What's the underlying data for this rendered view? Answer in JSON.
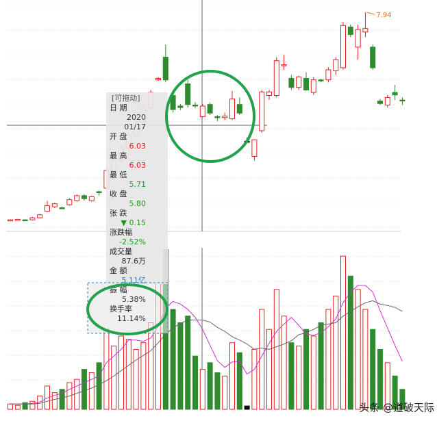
{
  "chart_data": {
    "type": "candlestick",
    "max_marker": 7.94,
    "ylim": [
      3.7,
      8.05
    ],
    "volume_ylim": [
      0,
      260
    ],
    "up_color": "#e02020",
    "down_color": "#2e8b2e",
    "flat_color": "#000000",
    "open": [
      3.81,
      3.82,
      3.82,
      3.82,
      3.86,
      3.99,
      4.08,
      4.06,
      4.12,
      4.2,
      4.3,
      4.2,
      4.38,
      4.45,
      4.8,
      5.0,
      5.25,
      5.5,
      5.75,
      6.05,
      6.6,
      7.05,
      6.29,
      6.08,
      6.52,
      6.1,
      5.87,
      6.11,
      5.87,
      5.85,
      5.83,
      6.11,
      5.38,
      5.08,
      5.59,
      6.29,
      6.29,
      6.88,
      6.63,
      6.45,
      6.63,
      6.35,
      6.6,
      6.6,
      6.78,
      6.84,
      7.65,
      7.25,
      7.55,
      7.25,
      6.18,
      6.1,
      6.35,
      6.2
    ],
    "high": [
      3.83,
      3.84,
      3.83,
      3.88,
      3.94,
      4.2,
      4.16,
      4.08,
      4.25,
      4.32,
      4.33,
      4.3,
      4.4,
      4.85,
      5.05,
      5.3,
      5.55,
      5.8,
      6.1,
      6.4,
      6.66,
      7.3,
      6.4,
      6.12,
      6.6,
      6.16,
      6.12,
      6.15,
      5.9,
      5.95,
      6.38,
      6.25,
      5.45,
      5.41,
      6.4,
      6.4,
      7.05,
      7.1,
      6.7,
      6.68,
      6.75,
      6.65,
      6.62,
      6.85,
      7.05,
      7.75,
      7.7,
      7.7,
      7.94,
      7.3,
      6.22,
      6.3,
      6.5,
      6.25
    ],
    "low": [
      3.8,
      3.81,
      3.8,
      3.81,
      3.85,
      3.97,
      4.05,
      4.04,
      4.1,
      4.18,
      4.2,
      4.18,
      4.3,
      4.42,
      4.75,
      4.95,
      5.2,
      5.45,
      5.7,
      6.0,
      6.58,
      6.55,
      5.95,
      6.0,
      6.05,
      6.04,
      5.85,
      5.9,
      5.78,
      5.8,
      5.8,
      5.9,
      5.35,
      5.0,
      5.55,
      6.2,
      6.25,
      6.8,
      6.4,
      6.4,
      6.38,
      6.3,
      6.55,
      6.55,
      6.7,
      6.8,
      7.45,
      7.0,
      7.45,
      6.8,
      6.1,
      6.05,
      6.2,
      6.1
    ],
    "close": [
      3.82,
      3.83,
      3.81,
      3.86,
      3.92,
      4.1,
      4.14,
      4.05,
      4.22,
      4.3,
      4.24,
      4.28,
      4.36,
      4.8,
      5.0,
      5.25,
      5.5,
      5.75,
      6.05,
      6.35,
      6.63,
      6.6,
      6.01,
      6.05,
      6.11,
      6.09,
      6.08,
      5.94,
      5.86,
      5.88,
      6.22,
      5.94,
      5.38,
      5.41,
      6.36,
      6.36,
      6.98,
      6.9,
      6.45,
      6.66,
      6.4,
      6.6,
      6.58,
      6.8,
      7.0,
      7.68,
      7.5,
      7.6,
      7.62,
      6.84,
      6.13,
      6.25,
      6.3,
      6.18
    ],
    "volume": [
      8,
      6,
      10,
      12,
      20,
      35,
      25,
      30,
      40,
      45,
      60,
      55,
      70,
      120,
      95,
      110,
      105,
      90,
      100,
      130,
      190,
      240,
      150,
      130,
      140,
      80,
      60,
      70,
      55,
      50,
      100,
      85,
      5,
      90,
      150,
      120,
      180,
      140,
      100,
      95,
      120,
      110,
      130,
      150,
      170,
      230,
      200,
      180,
      150,
      120,
      90,
      70,
      50,
      30
    ],
    "volume_ma": [
      {
        "color": "#cc33cc",
        "values": [
          8,
          8,
          8,
          9,
          11,
          17,
          21,
          24,
          30,
          35,
          40,
          45,
          50,
          70,
          80,
          90,
          104,
          104,
          102,
          107,
          125,
          152,
          162,
          158,
          150,
          138,
          120,
          96,
          73,
          63,
          71,
          72,
          53,
          60,
          80,
          99,
          117,
          128,
          138,
          126,
          113,
          111,
          115,
          124,
          136,
          160,
          176,
          186,
          186,
          176,
          148,
          122,
          96,
          72
        ]
      },
      {
        "color": "#666666",
        "values": [
          8,
          8,
          8,
          8,
          9,
          12,
          15,
          17,
          20,
          24,
          28,
          32,
          37,
          43,
          50,
          58,
          66,
          74,
          81,
          88,
          100,
          113,
          122,
          129,
          134,
          134,
          134,
          131,
          123,
          117,
          109,
          104,
          98,
          90,
          92,
          90,
          94,
          98,
          103,
          112,
          115,
          120,
          126,
          128,
          130,
          140,
          147,
          154,
          160,
          163,
          158,
          156,
          153,
          147
        ]
      }
    ]
  },
  "info_panel": {
    "title": "[可拖动]",
    "rows": [
      {
        "label": "日 期",
        "lines": [
          "2020",
          "01/17"
        ],
        "color": "#333333"
      },
      {
        "label": "开 盘",
        "lines": [
          "6.03"
        ],
        "color": "#e02020"
      },
      {
        "label": "最 高",
        "lines": [
          "6.03"
        ],
        "color": "#e02020"
      },
      {
        "label": "最 低",
        "lines": [
          "5.71"
        ],
        "color": "#1a9a1a"
      },
      {
        "label": "收 盘",
        "lines": [
          "5.80"
        ],
        "color": "#1a9a1a"
      },
      {
        "label": "张 跌",
        "lines": [
          "▼ 0.15"
        ],
        "color": "#1a9a1a"
      },
      {
        "label": "涨跌幅",
        "lines": [
          "-2.52%"
        ],
        "color": "#1a9a1a"
      },
      {
        "label": "成交量",
        "lines": [
          "87.6万"
        ],
        "color": "#333333"
      },
      {
        "label": "金 额",
        "lines": [
          "5.11亿"
        ],
        "color": "#3a7ab8"
      },
      {
        "label": "振 幅",
        "lines": [
          "5.38%"
        ],
        "color": "#333333"
      },
      {
        "label": "换手率",
        "lines": [
          "11.14%"
        ],
        "color": "#333333"
      }
    ]
  },
  "watermark": "头条 @道破天际"
}
